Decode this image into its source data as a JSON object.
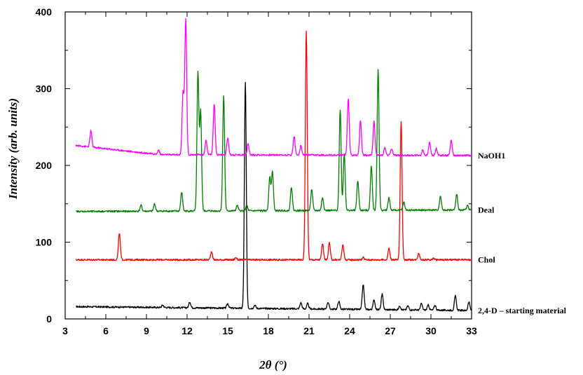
{
  "chart_data": {
    "type": "line",
    "xlabel": "2θ (°)",
    "ylabel": "Intensity (arb. units)",
    "xlim": [
      3,
      33
    ],
    "ylim": [
      0,
      400
    ],
    "x_ticks": [
      3,
      6,
      9,
      12,
      15,
      18,
      21,
      24,
      27,
      30,
      33
    ],
    "y_ticks": [
      0,
      100,
      200,
      300,
      400
    ],
    "x_tick_labels": [
      "3",
      "6",
      "9",
      "12",
      "15",
      "18",
      "21",
      "24",
      "27",
      "30",
      "33"
    ],
    "y_tick_labels": [
      "0",
      "100",
      "200",
      "300",
      "400"
    ],
    "grid": false,
    "legend": "series labels at right end of each curve",
    "series": [
      {
        "name": "2,4-D – starting material",
        "color": "#000000",
        "baseline": [
          [
            3.8,
            16
          ],
          [
            33,
            11
          ]
        ],
        "peaks": [
          [
            10.2,
            18
          ],
          [
            12.2,
            22
          ],
          [
            15.0,
            20
          ],
          [
            16.3,
            308
          ],
          [
            17.0,
            18
          ],
          [
            20.4,
            21
          ],
          [
            20.9,
            20
          ],
          [
            22.4,
            22
          ],
          [
            23.2,
            23
          ],
          [
            25.0,
            45
          ],
          [
            25.8,
            25
          ],
          [
            26.4,
            32
          ],
          [
            27.7,
            17
          ],
          [
            28.3,
            17
          ],
          [
            29.3,
            20
          ],
          [
            29.8,
            18
          ],
          [
            30.3,
            18
          ],
          [
            31.8,
            30
          ],
          [
            32.8,
            22
          ]
        ]
      },
      {
        "name": "Chol",
        "color": "#ff0000",
        "baseline": [
          [
            3.8,
            77
          ],
          [
            33,
            77
          ]
        ],
        "peaks": [
          [
            7.0,
            112
          ],
          [
            13.8,
            88
          ],
          [
            15.6,
            80
          ],
          [
            20.8,
            375
          ],
          [
            22.0,
            98
          ],
          [
            22.5,
            99
          ],
          [
            23.5,
            97
          ],
          [
            25.0,
            80
          ],
          [
            26.9,
            92
          ],
          [
            27.8,
            258
          ],
          [
            29.1,
            86
          ],
          [
            30.2,
            79
          ]
        ]
      },
      {
        "name": "Deal",
        "color": "#008000",
        "baseline": [
          [
            3.8,
            140
          ],
          [
            33,
            142
          ]
        ],
        "peaks": [
          [
            8.6,
            148
          ],
          [
            9.6,
            150
          ],
          [
            11.6,
            165
          ],
          [
            12.8,
            320
          ],
          [
            13.0,
            270
          ],
          [
            14.7,
            291
          ],
          [
            15.7,
            148
          ],
          [
            16.4,
            148
          ],
          [
            18.1,
            185
          ],
          [
            18.3,
            192
          ],
          [
            19.7,
            172
          ],
          [
            21.2,
            169
          ],
          [
            22.0,
            158
          ],
          [
            23.3,
            273
          ],
          [
            23.6,
            215
          ],
          [
            24.6,
            180
          ],
          [
            25.6,
            200
          ],
          [
            26.1,
            325
          ],
          [
            26.9,
            158
          ],
          [
            28.0,
            152
          ],
          [
            30.7,
            160
          ],
          [
            31.9,
            162
          ],
          [
            32.7,
            148
          ]
        ]
      },
      {
        "name": "NaOH1",
        "color": "#ff00ff",
        "baseline": [
          [
            3.8,
            226
          ],
          [
            10,
            214
          ],
          [
            33,
            213
          ]
        ],
        "peaks": [
          [
            4.9,
            245
          ],
          [
            9.9,
            220
          ],
          [
            11.7,
            295
          ],
          [
            11.9,
            389
          ],
          [
            13.4,
            233
          ],
          [
            14.0,
            280
          ],
          [
            15.0,
            236
          ],
          [
            16.5,
            228
          ],
          [
            19.9,
            238
          ],
          [
            20.4,
            226
          ],
          [
            23.9,
            286
          ],
          [
            24.8,
            259
          ],
          [
            25.8,
            257
          ],
          [
            26.6,
            223
          ],
          [
            27.1,
            222
          ],
          [
            29.4,
            220
          ],
          [
            29.9,
            230
          ],
          [
            30.4,
            222
          ],
          [
            31.5,
            233
          ]
        ]
      }
    ]
  }
}
